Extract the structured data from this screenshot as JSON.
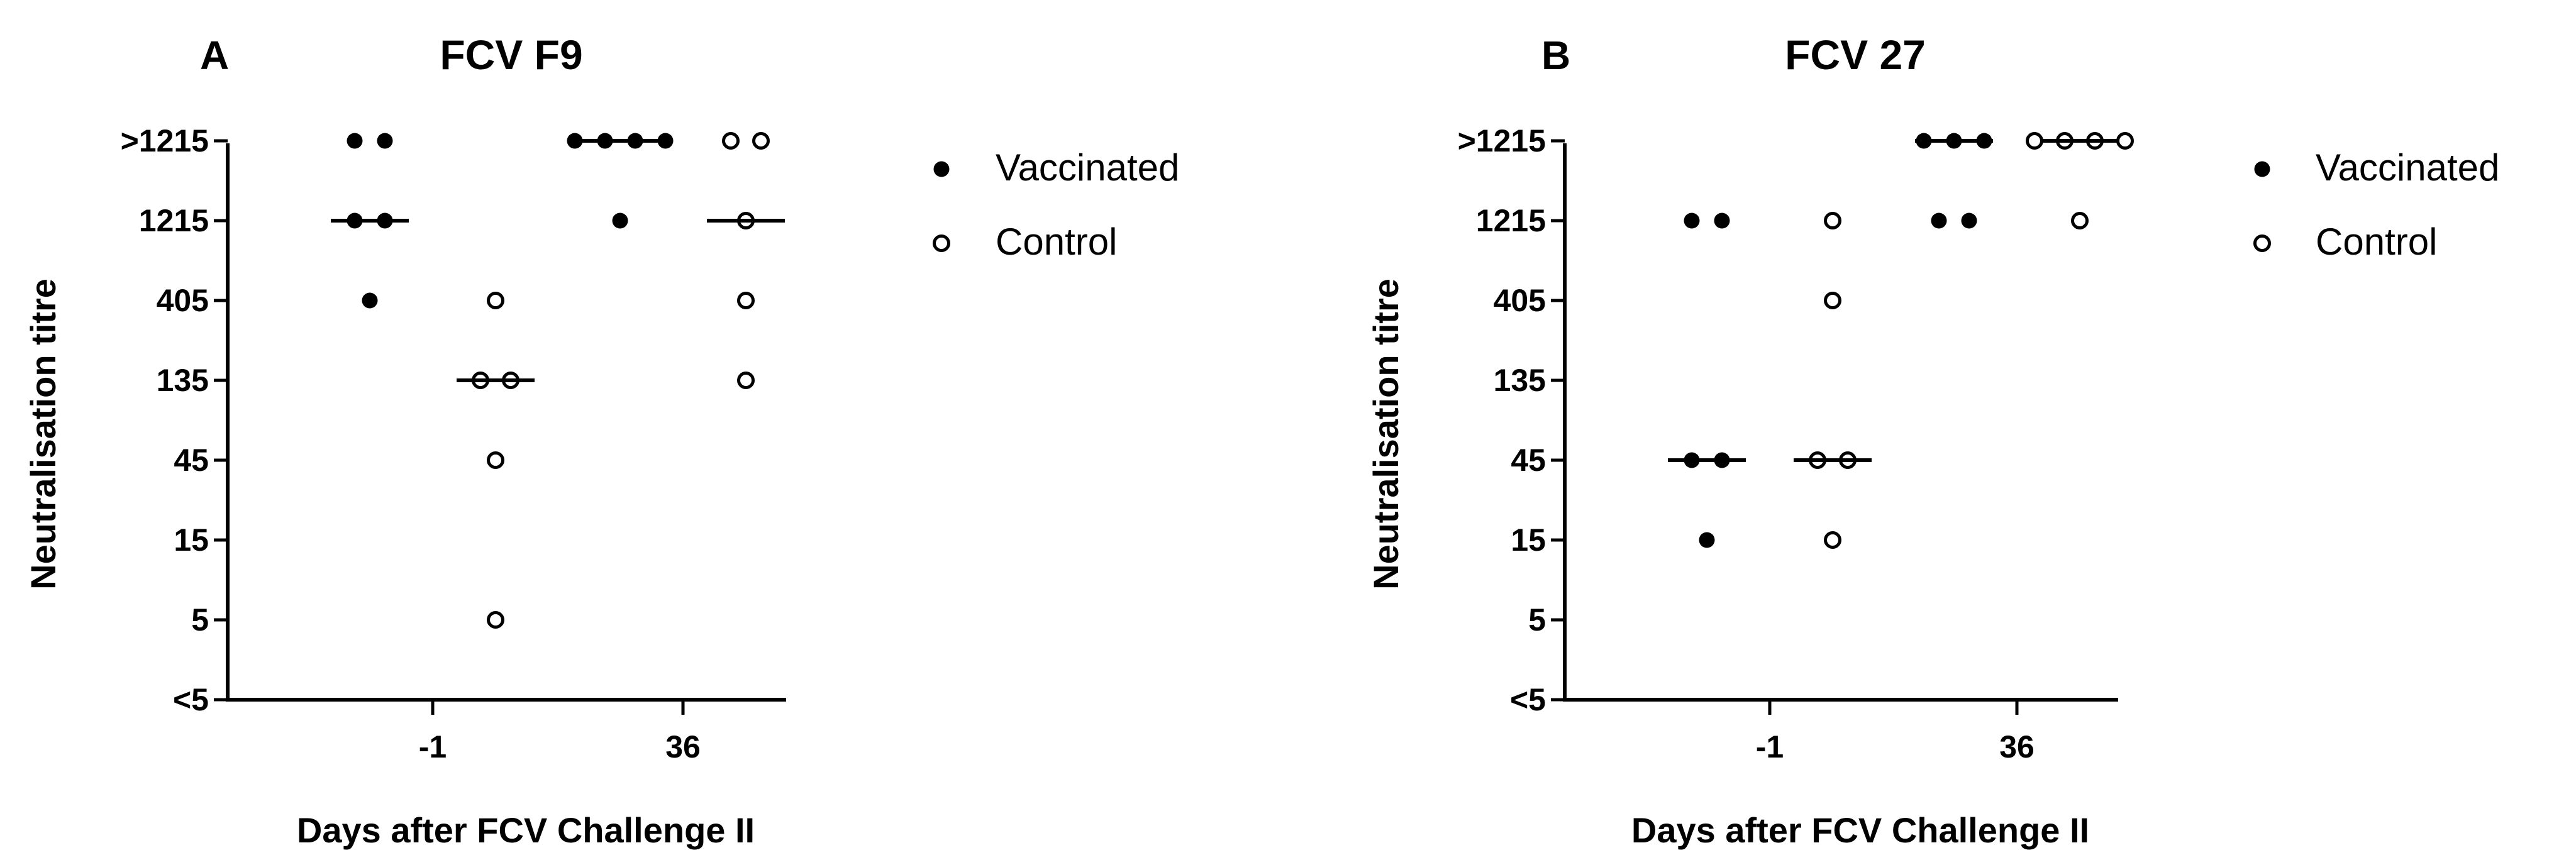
{
  "chart_data": [
    {
      "type": "scatter",
      "panel": "A",
      "title": "FCV F9",
      "xlabel": "Days after FCV Challenge II",
      "ylabel": "Neutralisation titre",
      "categories": [
        "-1",
        "36"
      ],
      "y_scale": "log3",
      "y_ticks": [
        "<5",
        "5",
        "15",
        "45",
        "135",
        "405",
        "1215",
        ">1215"
      ],
      "legend": [
        "Vaccinated",
        "Control"
      ],
      "legend_position": "right",
      "series": [
        {
          "name": "Vaccinated",
          "marker": "filled-circle",
          "day": "-1",
          "values": [
            ">1215",
            ">1215",
            "1215",
            "1215",
            "405"
          ],
          "median": "1215"
        },
        {
          "name": "Control",
          "marker": "open-circle",
          "day": "-1",
          "values": [
            "405",
            "135",
            "135",
            "45",
            "5"
          ],
          "median": "135"
        },
        {
          "name": "Vaccinated",
          "marker": "filled-circle",
          "day": "36",
          "values": [
            ">1215",
            ">1215",
            ">1215",
            ">1215",
            "1215"
          ],
          "median": ">1215"
        },
        {
          "name": "Control",
          "marker": "open-circle",
          "day": "36",
          "values": [
            ">1215",
            ">1215",
            "1215",
            "405",
            "135"
          ],
          "median": "1215"
        }
      ]
    },
    {
      "type": "scatter",
      "panel": "B",
      "title": "FCV 27",
      "xlabel": "Days after FCV Challenge II",
      "ylabel": "Neutralisation titre",
      "categories": [
        "-1",
        "36"
      ],
      "y_scale": "log3",
      "y_ticks": [
        "<5",
        "5",
        "15",
        "45",
        "135",
        "405",
        "1215",
        ">1215"
      ],
      "legend": [
        "Vaccinated",
        "Control"
      ],
      "legend_position": "right",
      "series": [
        {
          "name": "Vaccinated",
          "marker": "filled-circle",
          "day": "-1",
          "values": [
            "1215",
            "1215",
            "45",
            "45",
            "15"
          ],
          "median": "45"
        },
        {
          "name": "Control",
          "marker": "open-circle",
          "day": "-1",
          "values": [
            "1215",
            "405",
            "45",
            "45",
            "15"
          ],
          "median": "45"
        },
        {
          "name": "Vaccinated",
          "marker": "filled-circle",
          "day": "36",
          "values": [
            ">1215",
            ">1215",
            ">1215",
            "1215",
            "1215"
          ],
          "median": ">1215"
        },
        {
          "name": "Control",
          "marker": "open-circle",
          "day": "36",
          "values": [
            ">1215",
            ">1215",
            ">1215",
            ">1215",
            "1215"
          ],
          "median": ">1215"
        }
      ]
    }
  ]
}
